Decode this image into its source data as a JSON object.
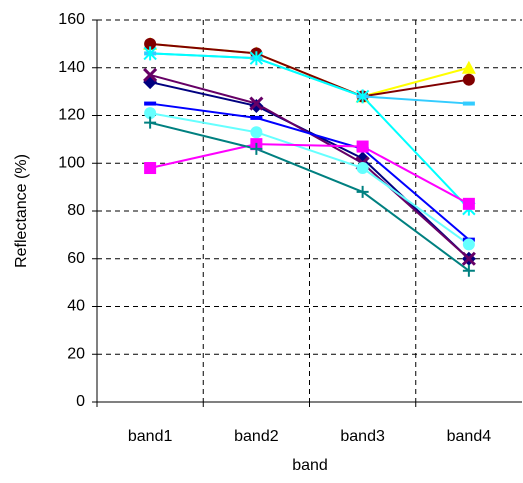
{
  "chart_data": {
    "type": "line",
    "x_label": "band",
    "y_label": "Reflectance (%)",
    "categories": [
      "band1",
      "band2",
      "band3",
      "band4"
    ],
    "ylim": [
      0,
      160
    ],
    "yticks": [
      0,
      20,
      40,
      60,
      80,
      100,
      120,
      140,
      160
    ],
    "grid": true,
    "series": [
      {
        "color": "#ffff00",
        "marker": "triangle",
        "values": [
          150,
          146,
          128,
          140
        ]
      },
      {
        "color": "#800000",
        "marker": "circle",
        "values": [
          150,
          146,
          128,
          135
        ]
      },
      {
        "color": "#33ccff",
        "marker": "dash",
        "values": [
          146,
          144,
          128,
          125
        ]
      },
      {
        "color": "#00ffff",
        "marker": "star",
        "values": [
          146,
          144,
          128,
          81
        ]
      },
      {
        "color": "#000080",
        "marker": "diamond",
        "values": [
          134,
          124,
          102,
          60
        ]
      },
      {
        "color": "#660066",
        "marker": "x",
        "values": [
          137,
          125,
          100,
          60
        ]
      },
      {
        "color": "#0000ff",
        "marker": "dash",
        "values": [
          125,
          119,
          106,
          68
        ]
      },
      {
        "color": "#66ffff",
        "marker": "circle",
        "values": [
          121,
          113,
          98,
          66
        ]
      },
      {
        "color": "#ff00ff",
        "marker": "square",
        "values": [
          98,
          108,
          107,
          83
        ]
      },
      {
        "color": "#008080",
        "marker": "plus",
        "values": [
          117,
          106,
          88,
          55
        ]
      }
    ]
  }
}
